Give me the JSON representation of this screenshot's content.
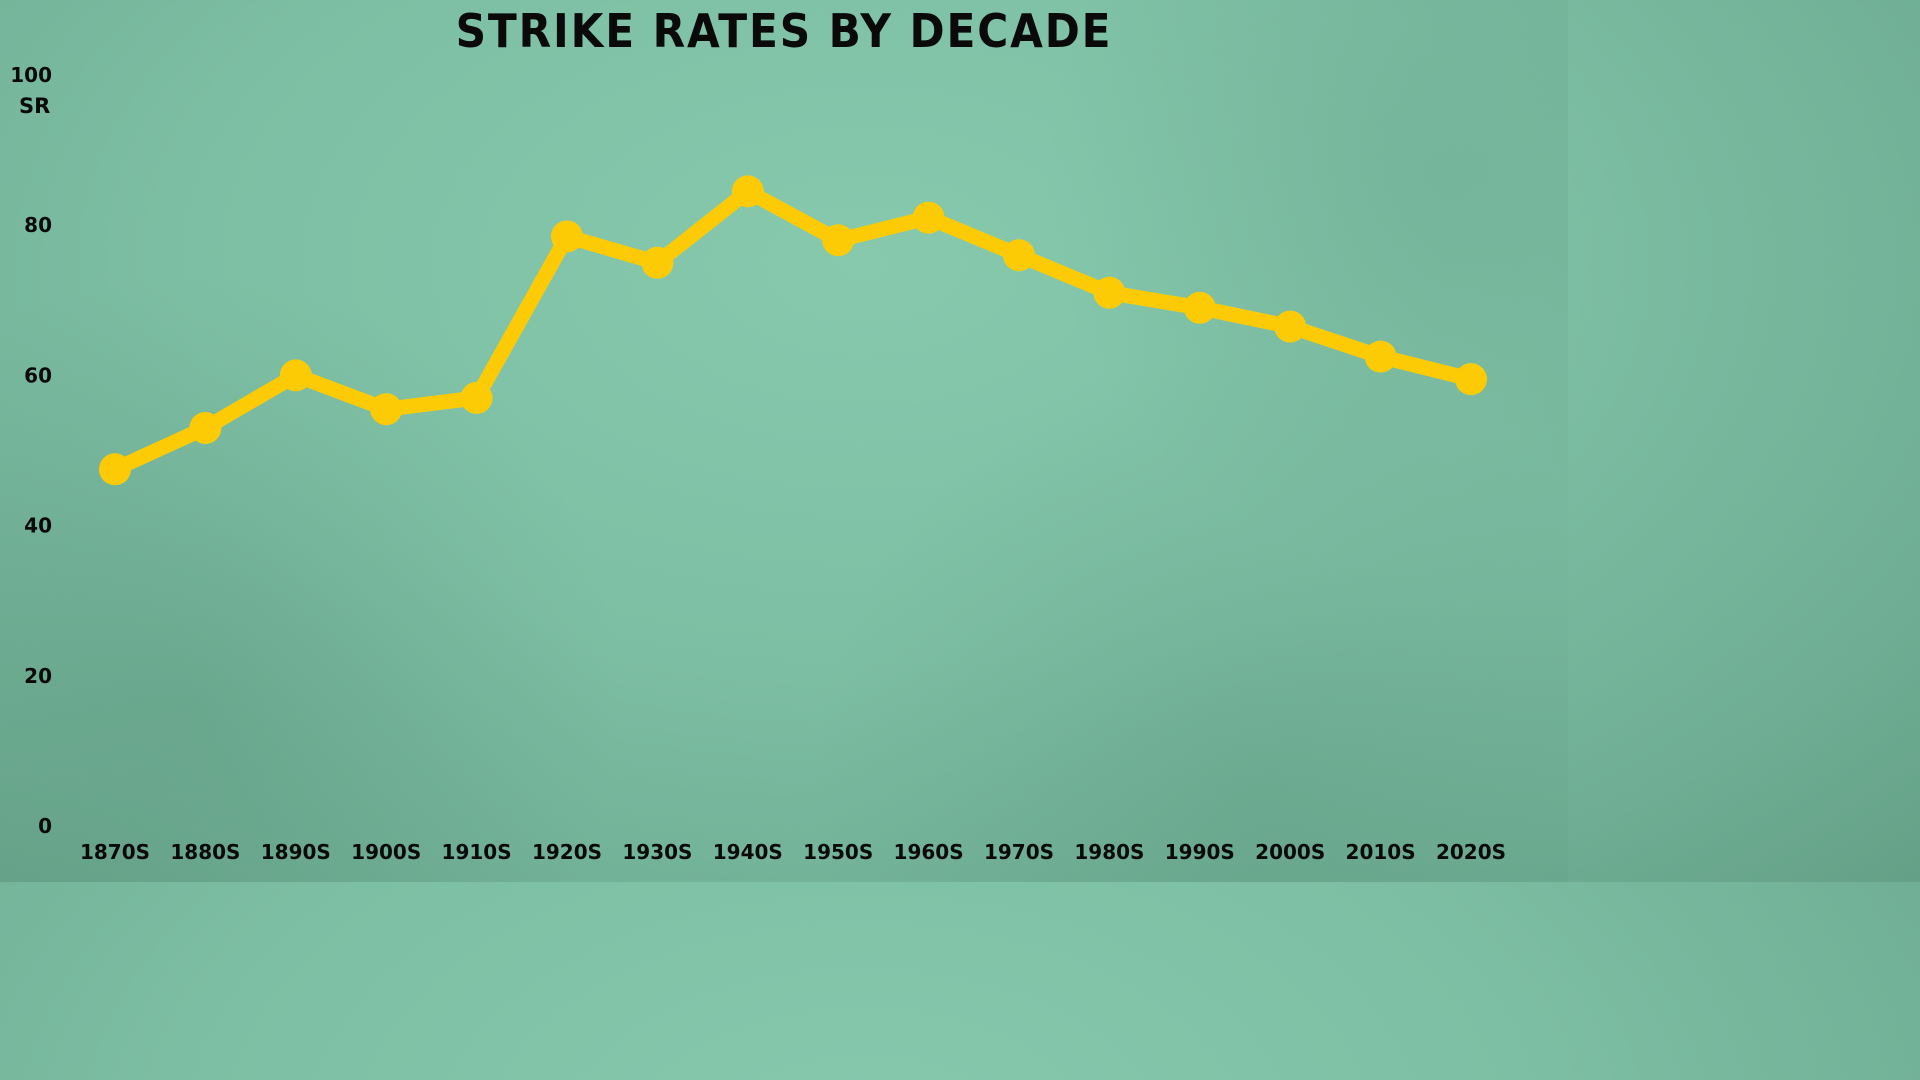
{
  "chart_data": {
    "type": "line",
    "title": "STRIKE RATES BY DECADE",
    "ylabel": "SR",
    "xlabel": "",
    "categories": [
      "1870S",
      "1880S",
      "1890S",
      "1900S",
      "1910S",
      "1920S",
      "1930S",
      "1940S",
      "1950S",
      "1960S",
      "1970S",
      "1980S",
      "1990S",
      "2000S",
      "2010S",
      "2020S"
    ],
    "series": [
      {
        "values": [
          47.5,
          53,
          60,
          55.5,
          57,
          78.5,
          75,
          84.5,
          78,
          81,
          76,
          71,
          69,
          66.5,
          62.5,
          59.5
        ]
      }
    ],
    "ylim": [
      0,
      100
    ],
    "yticks": [
      0,
      20,
      40,
      60,
      80,
      100
    ],
    "grid": false,
    "line_color": "#fdcb05"
  }
}
